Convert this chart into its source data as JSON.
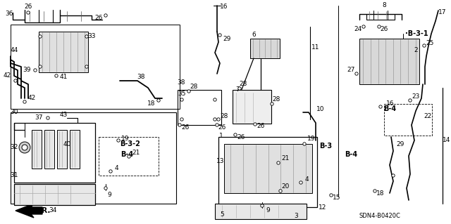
{
  "bg_color": "#ffffff",
  "diagram_code": "SDN4-B0420C",
  "figsize": [
    6.4,
    3.19
  ],
  "dpi": 100,
  "gray_fill": "#d8d8d8",
  "light_gray": "#e8e8e8",
  "mid_gray": "#b0b0b0"
}
